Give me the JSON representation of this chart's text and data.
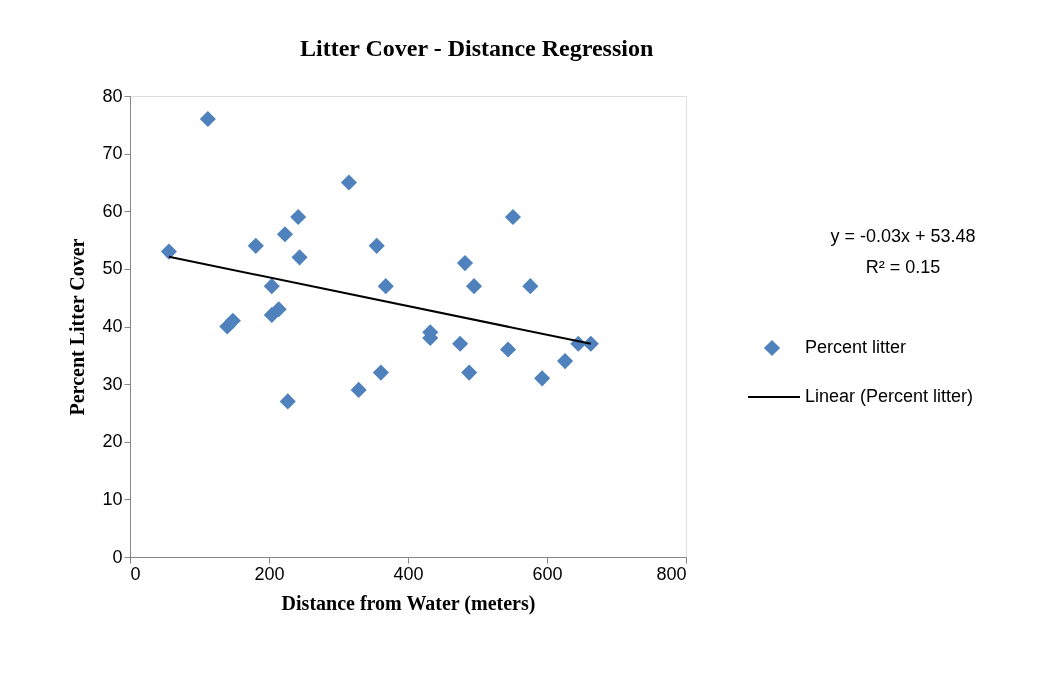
{
  "chart_data": {
    "type": "scatter",
    "title": "Litter Cover - Distance Regression",
    "xlabel": "Distance from Water (meters)",
    "ylabel": "Percent Litter Cover",
    "series": [
      {
        "name": "Percent litter",
        "color": "#4f81bd",
        "marker": "diamond",
        "x": [
          56,
          112,
          140,
          148,
          181,
          204,
          204,
          214,
          223,
          227,
          242,
          244,
          315,
          329,
          355,
          361,
          368,
          432,
          432,
          475,
          482,
          488,
          495,
          544,
          551,
          576,
          593,
          626,
          645,
          663
        ],
        "values": [
          53,
          76,
          40,
          41,
          54,
          47,
          42,
          43,
          56,
          27,
          59,
          52,
          65,
          29,
          54,
          32,
          47,
          38,
          39,
          37,
          51,
          32,
          47,
          36,
          59,
          47,
          31,
          34,
          37,
          37
        ]
      },
      {
        "name": "Linear (Percent litter)",
        "type": "line",
        "color": "#000000",
        "line_style": "solid",
        "x": [
          56,
          663
        ],
        "values": [
          52.1,
          37.0
        ]
      }
    ],
    "annotations": [
      "y = -0.03x + 53.48",
      "R² = 0.15"
    ],
    "xlim": [
      0,
      800
    ],
    "xticks": [
      0,
      200,
      400,
      600,
      800
    ],
    "ylim": [
      0,
      80
    ],
    "yticks": [
      0,
      10,
      20,
      30,
      40,
      50,
      60,
      70,
      80
    ],
    "grid": false,
    "legend": "right"
  }
}
